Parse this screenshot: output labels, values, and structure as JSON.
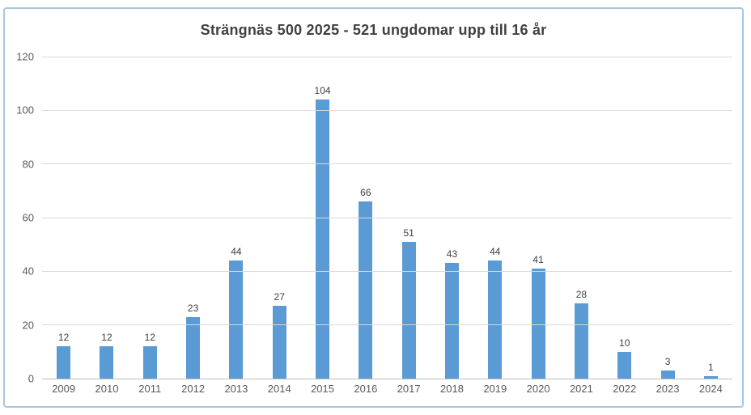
{
  "chart_data": {
    "type": "bar",
    "title": "Strängnäs 500 2025 - 521 ungdomar upp till 16 år",
    "categories": [
      "2009",
      "2010",
      "2011",
      "2012",
      "2013",
      "2014",
      "2015",
      "2016",
      "2017",
      "2018",
      "2019",
      "2020",
      "2021",
      "2022",
      "2023",
      "2024"
    ],
    "values": [
      12,
      12,
      12,
      23,
      44,
      27,
      104,
      66,
      51,
      43,
      44,
      41,
      28,
      10,
      3,
      1
    ],
    "xlabel": "",
    "ylabel": "",
    "ylim": [
      0,
      120
    ],
    "yticks": [
      0,
      20,
      40,
      60,
      80,
      100,
      120
    ],
    "grid": "horizontal",
    "legend": "none",
    "data_labels": "above-bars",
    "colors": {
      "bar": "#5b9bd5",
      "gridline": "#d9d9d9",
      "axis_line": "#bfbfbf",
      "title_text": "#404040",
      "value_label_text": "#404040",
      "tick_label_text": "#595959",
      "frame_border": "#a8c7e2",
      "background": "#ffffff"
    }
  }
}
